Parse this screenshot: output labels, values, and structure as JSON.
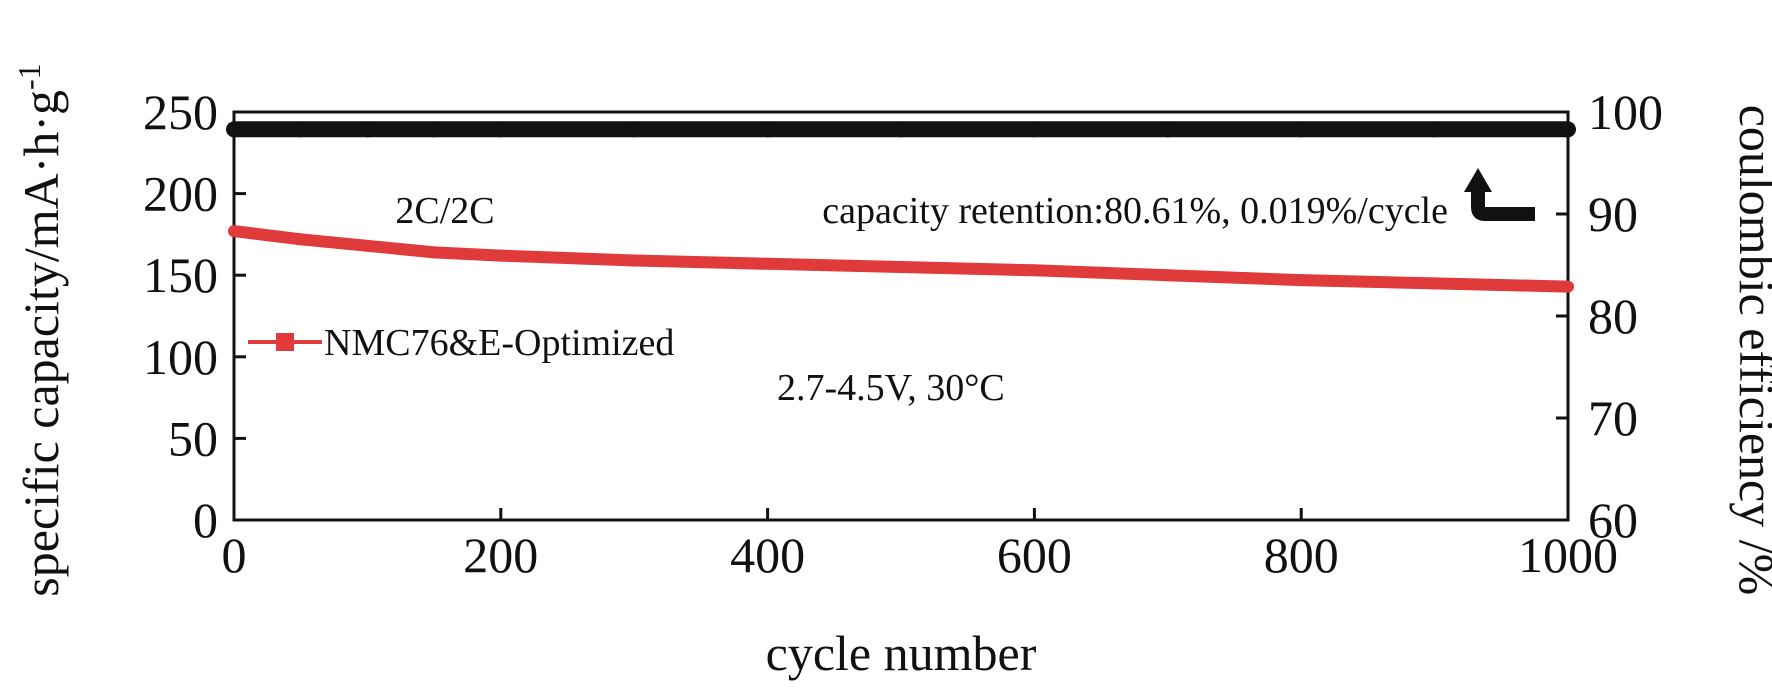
{
  "chart_data": {
    "type": "line",
    "x": [
      0,
      50,
      100,
      150,
      200,
      300,
      400,
      500,
      600,
      700,
      800,
      900,
      1000
    ],
    "series": [
      {
        "name": "NMC76&E-Optimized",
        "axis": "left",
        "color": "#e03a3a",
        "values": [
          177,
          172,
          168,
          164,
          162,
          159,
          157,
          155,
          153,
          150,
          147,
          145,
          143
        ]
      },
      {
        "name": "",
        "axis": "right",
        "color": "#111111",
        "values": [
          98.3,
          98.3,
          98.3,
          98.3,
          98.3,
          98.3,
          98.3,
          98.3,
          98.3,
          98.3,
          98.3,
          98.3,
          98.3
        ]
      }
    ],
    "xlabel": "cycle number",
    "ylabel": "specific capacity/mA·h·g",
    "ylabel_superscript": "-1",
    "y2label": "coulombic efficiency /%",
    "xlim": [
      0,
      1000
    ],
    "ylim": [
      0,
      250
    ],
    "y2lim": [
      60,
      100
    ],
    "xticks": [
      "0",
      "200",
      "400",
      "600",
      "800",
      "1000"
    ],
    "yticks": [
      "0",
      "50",
      "100",
      "150",
      "200",
      "250"
    ],
    "y2ticks": [
      "60",
      "70",
      "80",
      "90",
      "100"
    ],
    "annotations": {
      "rate": "2C/2C",
      "retention": "capacity retention:80.61%, 0.019%/cycle",
      "voltage": "2.7-4.5V, 30°C"
    },
    "legend": {
      "label": "NMC76&E-Optimized",
      "placement": "left"
    },
    "grid": false
  }
}
